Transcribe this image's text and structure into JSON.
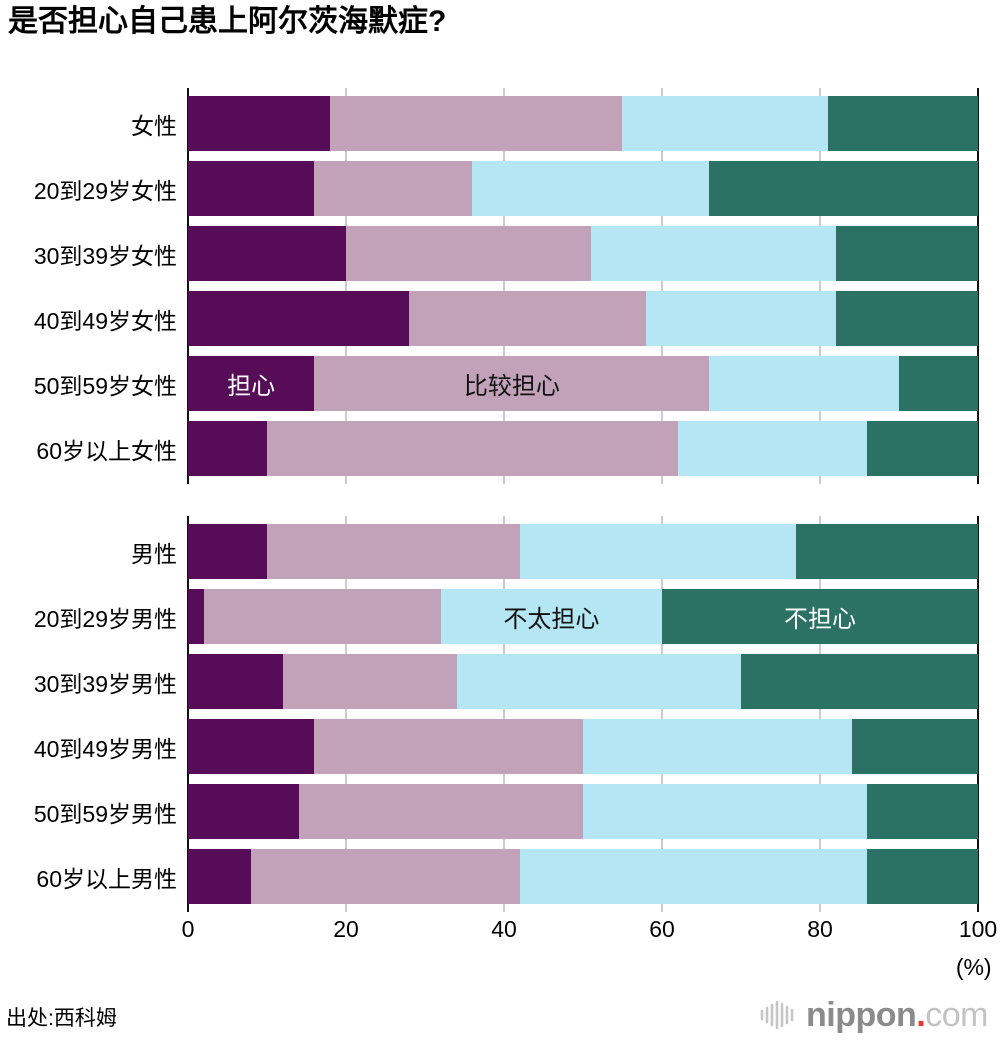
{
  "title": "是否担心自己患上阿尔茨海默症?",
  "colors": {
    "worried": "#570C58",
    "somewhat_worried": "#C1A2B8",
    "not_very_worried": "#B4E7F3",
    "not_worried": "#2B7264",
    "grid": "#CCCCCC",
    "axis": "#111111",
    "inline_label_light": "#FFFFFF",
    "inline_label_dark": "#111111"
  },
  "chart_data": {
    "type": "bar",
    "stacked": true,
    "orientation": "horizontal",
    "title": "是否担心自己患上阿尔茨海默症?",
    "xlabel": "(%)",
    "xlim": [
      0,
      100
    ],
    "x_ticks": [
      "0",
      "20",
      "40",
      "60",
      "80",
      "100"
    ],
    "x_tick_values": [
      0,
      20,
      40,
      60,
      80,
      100
    ],
    "grid": true,
    "series_labels": [
      "担心",
      "比较担心",
      "不太担心",
      "不担心"
    ],
    "groups": [
      {
        "name": "female",
        "rows": [
          {
            "label": "女性",
            "values": [
              18,
              37,
              26,
              19
            ]
          },
          {
            "label": "20到29岁女性",
            "values": [
              16,
              20,
              30,
              34
            ]
          },
          {
            "label": "30到39岁女性",
            "values": [
              20,
              31,
              31,
              18
            ]
          },
          {
            "label": "40到49岁女性",
            "values": [
              28,
              30,
              24,
              18
            ]
          },
          {
            "label": "50到59岁女性",
            "values": [
              16,
              50,
              24,
              10
            ]
          },
          {
            "label": "60岁以上女性",
            "values": [
              10,
              52,
              24,
              14
            ]
          }
        ]
      },
      {
        "name": "male",
        "rows": [
          {
            "label": "男性",
            "values": [
              10,
              32,
              35,
              23
            ]
          },
          {
            "label": "20到29岁男性",
            "values": [
              2,
              30,
              28,
              40
            ]
          },
          {
            "label": "30到39岁男性",
            "values": [
              12,
              22,
              36,
              30
            ]
          },
          {
            "label": "40到49岁男性",
            "values": [
              16,
              34,
              34,
              16
            ]
          },
          {
            "label": "50到59岁男性",
            "values": [
              14,
              36,
              36,
              14
            ]
          },
          {
            "label": "60岁以上男性",
            "values": [
              8,
              34,
              44,
              14
            ]
          }
        ]
      }
    ],
    "inline_labels": [
      {
        "group": 0,
        "row": 4,
        "segment": 0,
        "text": "担心",
        "color": "#FFFFFF"
      },
      {
        "group": 0,
        "row": 4,
        "segment": 1,
        "text": "比较担心",
        "color": "#111111"
      },
      {
        "group": 1,
        "row": 1,
        "segment": 2,
        "text": "不太担心",
        "color": "#111111"
      },
      {
        "group": 1,
        "row": 1,
        "segment": 3,
        "text": "不担心",
        "color": "#FFFFFF"
      }
    ]
  },
  "x_axis": {
    "unit": "(%)"
  },
  "footer": {
    "source": "出处:西科姆",
    "logo": {
      "brand": "nippon",
      "dot": ".",
      "tld": "com",
      "icon": "nippon-soundwave-icon"
    }
  }
}
